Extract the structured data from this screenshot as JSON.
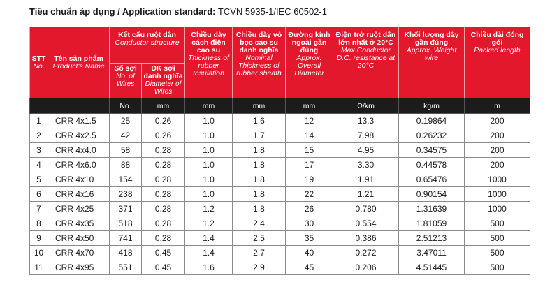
{
  "standard": {
    "label": "Tiêu chuẩn áp dụng / Application standard:",
    "value": "TCVN 5935-1/IEC 60502-1"
  },
  "headers": {
    "stt": {
      "vi": "STT",
      "en": "No."
    },
    "product": {
      "vi": "Tên sản phẩm",
      "en": "Product's Name"
    },
    "conductor": {
      "vi": "Kết cấu ruột dẫn",
      "en": "Conductor structure"
    },
    "wires": {
      "vi": "Số sợi",
      "en": "No. of Wires"
    },
    "wire_dia": {
      "vi": "ĐK sợi danh nghĩa",
      "en": "Diameter of Wires"
    },
    "insulation": {
      "vi": "Chiều dày cách điện cao su",
      "en": "Thickness of rubber Insulation"
    },
    "sheath": {
      "vi": "Chiều dày vỏ bọc cao su danh nghĩa",
      "en": "Nominal Thickness of rubber sheath"
    },
    "overall_dia": {
      "vi": "Đường kính ngoài gần đúng",
      "en": "Approx. Overall Diameter"
    },
    "resistance": {
      "vi": "Điện trở ruột dẫn lớn nhất ở 20°C",
      "en": "Max.Conductor D.C. resistance at 20°C"
    },
    "weight": {
      "vi": "Khối lượng dây gần đúng",
      "en": "Approx. Weight wire"
    },
    "length": {
      "vi": "Chiều dài đóng gói",
      "en": "Packed length"
    }
  },
  "units": [
    "No.",
    "mm",
    "mm",
    "mm",
    "mm",
    "Ω/km",
    "kg/m",
    "m"
  ],
  "rows": [
    [
      "1",
      "CRR 4x1.5",
      "25",
      "0.26",
      "1.0",
      "1.6",
      "12",
      "13.3",
      "0.19864",
      "200"
    ],
    [
      "2",
      "CRR 4x2.5",
      "42",
      "0.26",
      "1.0",
      "1.7",
      "14",
      "7.98",
      "0.26232",
      "200"
    ],
    [
      "3",
      "CRR 4x4.0",
      "58",
      "0.28",
      "1.0",
      "1.8",
      "15",
      "4.95",
      "0.34575",
      "200"
    ],
    [
      "4",
      "CRR 4x6.0",
      "88",
      "0.28",
      "1.0",
      "1.8",
      "17",
      "3.30",
      "0.44578",
      "200"
    ],
    [
      "5",
      "CRR 4x10",
      "154",
      "0.28",
      "1.0",
      "1.8",
      "19",
      "1.91",
      "0.65476",
      "1000"
    ],
    [
      "6",
      "CRR 4x16",
      "238",
      "0.28",
      "1.0",
      "1.8",
      "22",
      "1.21",
      "0.90154",
      "1000"
    ],
    [
      "7",
      "CRR 4x25",
      "371",
      "0.28",
      "1.2",
      "1.8",
      "26",
      "0.780",
      "1.31639",
      "1000"
    ],
    [
      "8",
      "CRR 4x35",
      "518",
      "0.28",
      "1.2",
      "2.4",
      "30",
      "0.554",
      "1.81059",
      "500"
    ],
    [
      "9",
      "CRR 4x50",
      "741",
      "0.28",
      "1.4",
      "2.5",
      "35",
      "0.386",
      "2.51213",
      "500"
    ],
    [
      "10",
      "CRR 4x70",
      "418",
      "0.45",
      "1.4",
      "2.7",
      "40",
      "0.272",
      "3.47011",
      "500"
    ],
    [
      "11",
      "CRR 4x95",
      "551",
      "0.45",
      "1.6",
      "2.9",
      "45",
      "0.206",
      "4.51445",
      "500"
    ]
  ]
}
